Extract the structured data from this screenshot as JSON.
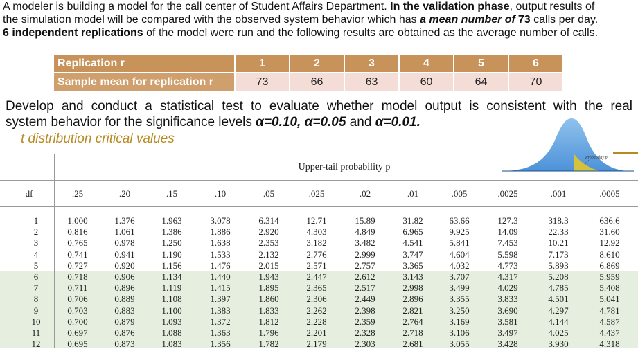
{
  "intro": [
    [
      "A modeler is building a model for the call center of Student Affairs Department. ",
      "In the validation phase",
      ", output results of"
    ],
    [
      "the simulation model will be compared with the observed system behavior which has ",
      "a mean number of",
      "73",
      " calls per day."
    ],
    [
      "6 independent replications",
      " of the model were run and the following results are obtained as the average number of calls."
    ]
  ],
  "replication_table": {
    "header": [
      "Replication r",
      1,
      2,
      3,
      4,
      5,
      6
    ],
    "row": [
      "Sample mean for replication r",
      73,
      66,
      63,
      60,
      64,
      70
    ]
  },
  "task": [
    [
      "Develop and conduct a statistical test to evaluate whether model output is consistent with the real"
    ],
    [
      "system behavior for the significance levels ",
      "α=0.10, α=0.05",
      " and ",
      "α=0.01."
    ]
  ],
  "t_table": {
    "title": "t distribution critical values",
    "figure_label": "Probability p",
    "caption": "Upper-tail probability p",
    "header": [
      "df",
      ".25",
      ".20",
      ".15",
      ".10",
      ".05",
      ".025",
      ".02",
      ".01",
      ".005",
      ".0025",
      ".001",
      ".0005"
    ],
    "rows": [
      [
        "1",
        "1.000",
        "1.376",
        "1.963",
        "3.078",
        "6.314",
        "12.71",
        "15.89",
        "31.82",
        "63.66",
        "127.3",
        "318.3",
        "636.6"
      ],
      [
        "2",
        "0.816",
        "1.061",
        "1.386",
        "1.886",
        "2.920",
        "4.303",
        "4.849",
        "6.965",
        "9.925",
        "14.09",
        "22.33",
        "31.60"
      ],
      [
        "3",
        "0.765",
        "0.978",
        "1.250",
        "1.638",
        "2.353",
        "3.182",
        "3.482",
        "4.541",
        "5.841",
        "7.453",
        "10.21",
        "12.92"
      ],
      [
        "4",
        "0.741",
        "0.941",
        "1.190",
        "1.533",
        "2.132",
        "2.776",
        "2.999",
        "3.747",
        "4.604",
        "5.598",
        "7.173",
        "8.610"
      ],
      [
        "5",
        "0.727",
        "0.920",
        "1.156",
        "1.476",
        "2.015",
        "2.571",
        "2.757",
        "3.365",
        "4.032",
        "4.773",
        "5.893",
        "6.869"
      ],
      [
        "6",
        "0.718",
        "0.906",
        "1.134",
        "1.440",
        "1.943",
        "2.447",
        "2.612",
        "3.143",
        "3.707",
        "4.317",
        "5.208",
        "5.959"
      ],
      [
        "7",
        "0.711",
        "0.896",
        "1.119",
        "1.415",
        "1.895",
        "2.365",
        "2.517",
        "2.998",
        "3.499",
        "4.029",
        "4.785",
        "5.408"
      ],
      [
        "8",
        "0.706",
        "0.889",
        "1.108",
        "1.397",
        "1.860",
        "2.306",
        "2.449",
        "2.896",
        "3.355",
        "3.833",
        "4.501",
        "5.041"
      ],
      [
        "9",
        "0.703",
        "0.883",
        "1.100",
        "1.383",
        "1.833",
        "2.262",
        "2.398",
        "2.821",
        "3.250",
        "3.690",
        "4.297",
        "4.781"
      ],
      [
        "10",
        "0.700",
        "0.879",
        "1.093",
        "1.372",
        "1.812",
        "2.228",
        "2.359",
        "2.764",
        "3.169",
        "3.581",
        "4.144",
        "4.587"
      ],
      [
        "11",
        "0.697",
        "0.876",
        "1.088",
        "1.363",
        "1.796",
        "2.201",
        "2.328",
        "2.718",
        "3.106",
        "3.497",
        "4.025",
        "4.437"
      ],
      [
        "12",
        "0.695",
        "0.873",
        "1.083",
        "1.356",
        "1.782",
        "2.179",
        "2.303",
        "2.681",
        "3.055",
        "3.428",
        "3.930",
        "4.318"
      ]
    ]
  }
}
